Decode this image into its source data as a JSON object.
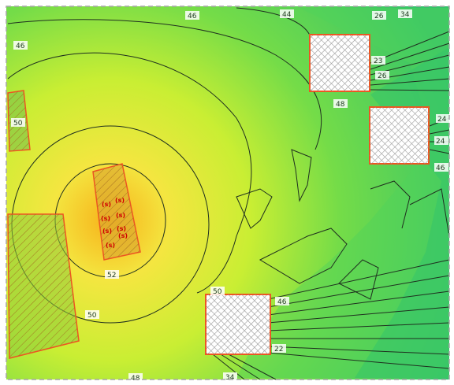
{
  "map": {
    "colors": {
      "hot": "#f7b21a",
      "warm": "#f4e640",
      "mid": "#c9ee33",
      "cool": "#74dc48",
      "cold": "#35c46a",
      "contour": "#1f2f1f",
      "building_fill": "#ffffff",
      "building_hatch": "#9a9a9a",
      "building_edge": "#ee5522",
      "border": "#a6a6a6"
    },
    "contour_labels": {
      "l46_left": "46",
      "l46_top": "46",
      "l44_top": "44",
      "l48_mid": "48",
      "l50_left": "50",
      "l52": "52",
      "l50_bottom": "50",
      "l50_low": "50",
      "l46_right": "46",
      "l46_far": "46",
      "l22": "22",
      "l48_bottom": "48",
      "l34_top": "34",
      "l26_top": "26",
      "l23_r": "23",
      "l24_r": "24",
      "l26_r": "26",
      "l24_far": "24",
      "l34_bottom": "34"
    },
    "source_marks": [
      "(s)",
      "(s)",
      "(s)",
      "(s)",
      "(s)",
      "(s)",
      "(s)",
      "(s)"
    ]
  }
}
